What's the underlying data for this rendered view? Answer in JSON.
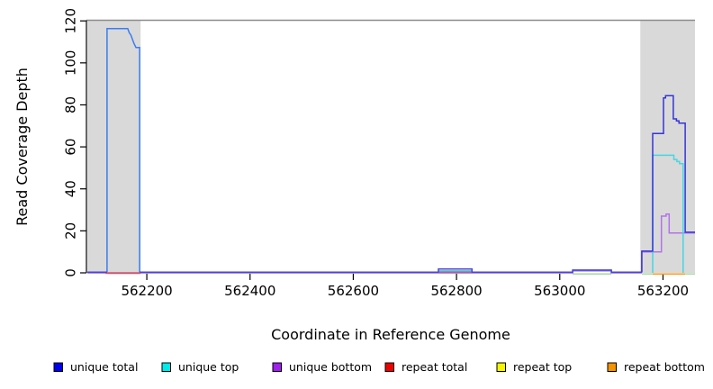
{
  "chart_data": {
    "type": "line",
    "title": "",
    "xlabel": "Coordinate in Reference Genome",
    "ylabel": "Read Coverage Depth",
    "xlim": [
      562083,
      563262
    ],
    "ylim": [
      0,
      120
    ],
    "x_ticks": [
      562200,
      562400,
      562600,
      562800,
      563000,
      563200
    ],
    "y_ticks": [
      0,
      20,
      40,
      60,
      80,
      100,
      120
    ],
    "grid": false,
    "legend_position": "bottom",
    "colors": {
      "axis": "#000000",
      "top_border": "#8c8c8c",
      "highlight_band": "#d9d9d9",
      "background": "#ffffff"
    },
    "highlight_bands": [
      {
        "x0": 562085,
        "x1": 562188
      },
      {
        "x0": 563156,
        "x1": 563262
      }
    ],
    "series": [
      {
        "name": "repeat top",
        "legend_color": "#f5f500",
        "line_color": "#a6d7a2",
        "paths": [
          {
            "dy": 1.2,
            "pts": [
              [
                563025,
                0
              ],
              [
                563100,
                0
              ]
            ]
          },
          {
            "dy": 1.2,
            "pts": [
              [
                563159,
                0
              ],
              [
                563180,
                0
              ]
            ]
          },
          {
            "dy": 1.2,
            "pts": [
              [
                563243,
                0
              ],
              [
                563262,
                0
              ]
            ]
          }
        ]
      },
      {
        "name": "repeat bottom",
        "legend_color": "#f59300",
        "line_color": "#ff9714",
        "paths": [
          {
            "dy": 1.2,
            "pts": [
              [
                563180,
                0
              ],
              [
                563243,
                0
              ]
            ]
          }
        ]
      },
      {
        "name": "unique bottom",
        "legend_color": "#a020f0",
        "line_color": "#b273e8",
        "paths": [
          {
            "color": "#8e66dc",
            "dy": 0,
            "pts": [
              [
                562085,
                0
              ],
              [
                563025,
                0
              ],
              [
                563025,
                1
              ],
              [
                563100,
                1
              ],
              [
                563100,
                0
              ],
              [
                563159,
                0
              ]
            ]
          },
          {
            "color": "#b273e8",
            "dy": 0,
            "pts": [
              [
                563159,
                0
              ],
              [
                563159,
                10
              ],
              [
                563197,
                10
              ],
              [
                563197,
                27
              ],
              [
                563206,
                27
              ],
              [
                563206,
                28
              ],
              [
                563212,
                28
              ],
              [
                563212,
                19
              ],
              [
                563262,
                19
              ]
            ]
          }
        ]
      },
      {
        "name": "repeat total",
        "legend_color": "#ee0000",
        "line_color": "#e54b4b",
        "paths": [
          {
            "dy": 0.5,
            "pts": [
              [
                562120,
                0
              ],
              [
                562188,
                0
              ]
            ]
          },
          {
            "dy": 0,
            "pts": [
              [
                562765,
                0.5
              ],
              [
                562830,
                0.5
              ]
            ]
          }
        ]
      },
      {
        "name": "unique top",
        "legend_color": "#00eaea",
        "line_color": "#45d6e2",
        "paths": [
          {
            "dy": 0,
            "pts": [
              [
                562765,
                1
              ],
              [
                562830,
                1
              ]
            ]
          },
          {
            "dy": 0,
            "pts": [
              [
                563180,
                0
              ],
              [
                563180,
                56
              ],
              [
                563221,
                56
              ],
              [
                563221,
                54
              ],
              [
                563227,
                54
              ],
              [
                563227,
                53
              ],
              [
                563232,
                53
              ],
              [
                563232,
                52
              ],
              [
                563239,
                52
              ],
              [
                563239,
                0
              ]
            ]
          }
        ]
      },
      {
        "name": "unique total",
        "legend_color": "#0000ee",
        "line_color": "#3b7cf0",
        "paths": [
          {
            "color": "#3b7cf0",
            "dy": -0.8,
            "pts": [
              [
                562123,
                0
              ],
              [
                562123,
                116
              ],
              [
                562163,
                116
              ],
              [
                562166,
                114
              ],
              [
                562169,
                113
              ],
              [
                562172,
                111
              ],
              [
                562175,
                109
              ],
              [
                562179,
                107
              ],
              [
                562186,
                107
              ],
              [
                562186,
                0
              ]
            ]
          },
          {
            "color": "#4747d8",
            "dy": -0.8,
            "pts": [
              [
                562085,
                0
              ],
              [
                562123,
                0
              ]
            ]
          },
          {
            "color": "#4747d8",
            "dy": -0.8,
            "pts": [
              [
                562186,
                0
              ],
              [
                562765,
                0
              ],
              [
                562765,
                1.5
              ],
              [
                562830,
                1.5
              ],
              [
                562830,
                0
              ],
              [
                563025,
                0
              ],
              [
                563025,
                1
              ],
              [
                563100,
                1
              ],
              [
                563100,
                0
              ],
              [
                563159,
                0
              ]
            ]
          },
          {
            "color": "#3434da",
            "dy": -0.8,
            "pts": [
              [
                563159,
                0
              ],
              [
                563159,
                10
              ],
              [
                563180,
                10
              ],
              [
                563180,
                66
              ],
              [
                563201,
                66
              ],
              [
                563201,
                83
              ],
              [
                563205,
                83
              ],
              [
                563205,
                84
              ],
              [
                563220,
                84
              ],
              [
                563220,
                73
              ],
              [
                563226,
                73
              ],
              [
                563226,
                72
              ],
              [
                563231,
                72
              ],
              [
                563231,
                71
              ],
              [
                563243,
                71
              ],
              [
                563243,
                19
              ],
              [
                563262,
                19
              ]
            ]
          }
        ]
      }
    ],
    "legend": {
      "items": [
        {
          "label": "unique total",
          "color": "#0000ee"
        },
        {
          "label": "unique top",
          "color": "#00eaea"
        },
        {
          "label": "unique bottom",
          "color": "#a020f0"
        },
        {
          "label": "repeat total",
          "color": "#ee0000"
        },
        {
          "label": "repeat top",
          "color": "#f5f500"
        },
        {
          "label": "repeat bottom",
          "color": "#f59300"
        }
      ]
    }
  }
}
